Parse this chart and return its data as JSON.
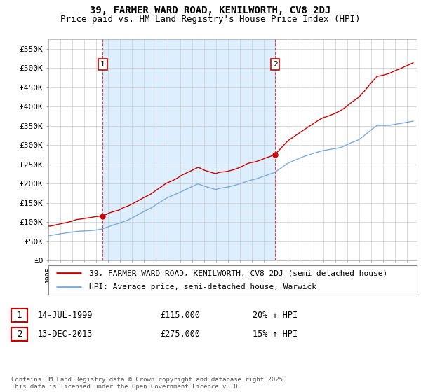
{
  "title": "39, FARMER WARD ROAD, KENILWORTH, CV8 2DJ",
  "subtitle": "Price paid vs. HM Land Registry's House Price Index (HPI)",
  "ylim": [
    0,
    575000
  ],
  "yticks": [
    0,
    50000,
    100000,
    150000,
    200000,
    250000,
    300000,
    350000,
    400000,
    450000,
    500000,
    550000
  ],
  "ytick_labels": [
    "£0",
    "£50K",
    "£100K",
    "£150K",
    "£200K",
    "£250K",
    "£300K",
    "£350K",
    "£400K",
    "£450K",
    "£500K",
    "£550K"
  ],
  "line1_color": "#cc0000",
  "line2_color": "#7aabdb",
  "shade_color": "#ddeeff",
  "background_color": "#ffffff",
  "grid_color": "#cccccc",
  "sale1_year": 1999.54,
  "sale1_price": 115000,
  "sale2_year": 2013.95,
  "sale2_price": 275000,
  "annotation1_label": "1",
  "annotation2_label": "2",
  "legend_line1": "39, FARMER WARD ROAD, KENILWORTH, CV8 2DJ (semi-detached house)",
  "legend_line2": "HPI: Average price, semi-detached house, Warwick",
  "table_entries": [
    [
      "1",
      "14-JUL-1999",
      "£115,000",
      "20% ↑ HPI"
    ],
    [
      "2",
      "13-DEC-2013",
      "£275,000",
      "15% ↑ HPI"
    ]
  ],
  "footnote": "Contains HM Land Registry data © Crown copyright and database right 2025.\nThis data is licensed under the Open Government Licence v3.0.",
  "title_fontsize": 10,
  "subtitle_fontsize": 9,
  "tick_fontsize": 8,
  "legend_fontsize": 8,
  "table_fontsize": 8.5
}
